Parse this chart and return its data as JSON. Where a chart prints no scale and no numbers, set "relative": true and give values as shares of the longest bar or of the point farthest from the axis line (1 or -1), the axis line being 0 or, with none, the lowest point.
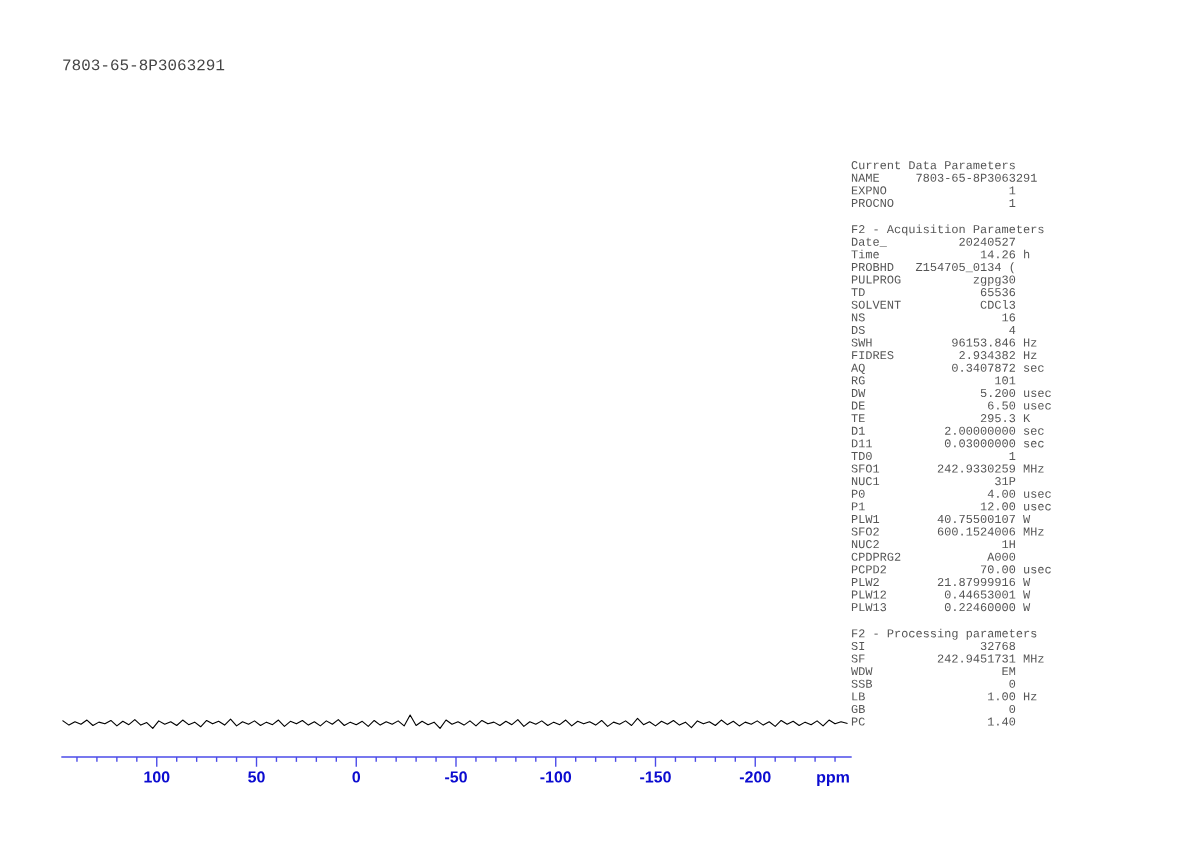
{
  "chart_data": [
    {
      "type": "line",
      "title": "7803-65-8P3063291",
      "xlabel": "ppm",
      "relative": true,
      "xlim": [
        147.5,
        -248
      ],
      "xticks": [
        {
          "value": 140,
          "label": null
        },
        {
          "value": 130,
          "label": null
        },
        {
          "value": 120,
          "label": null
        },
        {
          "value": 110,
          "label": null
        },
        100,
        {
          "value": 90,
          "label": null
        },
        {
          "value": 80,
          "label": null
        },
        {
          "value": 70,
          "label": null
        },
        {
          "value": 60,
          "label": null
        },
        50,
        {
          "value": 40,
          "label": null
        },
        {
          "value": 30,
          "label": null
        },
        {
          "value": 20,
          "label": null
        },
        {
          "value": 10,
          "label": null
        },
        0,
        {
          "value": -10,
          "label": null
        },
        {
          "value": -20,
          "label": null
        },
        {
          "value": -30,
          "label": null
        },
        {
          "value": -40,
          "label": null
        },
        -50,
        {
          "value": -60,
          "label": null
        },
        {
          "value": -70,
          "label": null
        },
        {
          "value": -80,
          "label": null
        },
        {
          "value": -90,
          "label": null
        },
        -100,
        {
          "value": -110,
          "label": null
        },
        {
          "value": -120,
          "label": null
        },
        {
          "value": -130,
          "label": null
        },
        {
          "value": -140,
          "label": null
        },
        -150,
        {
          "value": -160,
          "label": null
        },
        {
          "value": -170,
          "label": null
        },
        {
          "value": -180,
          "label": null
        },
        {
          "value": -190,
          "label": null
        },
        -200,
        {
          "value": -210,
          "label": null
        },
        {
          "value": -220,
          "label": null
        },
        {
          "value": -230,
          "label": null
        },
        {
          "value": -240,
          "label": null
        }
      ],
      "x": [
        147,
        144,
        141,
        138,
        135,
        132,
        129,
        126,
        123,
        120,
        117,
        114,
        111,
        108,
        105,
        102,
        99,
        96,
        93,
        90,
        87,
        84,
        81,
        78,
        75,
        72,
        69,
        66,
        63,
        60,
        57,
        54,
        51,
        48,
        45,
        42,
        39,
        36,
        33,
        30,
        27,
        24,
        21,
        18,
        15,
        12,
        9,
        6,
        3,
        0,
        -3,
        -6,
        -9,
        -12,
        -15,
        -18,
        -21,
        -24,
        -27,
        -30,
        -33,
        -36,
        -39,
        -42,
        -45,
        -48,
        -51,
        -54,
        -57,
        -60,
        -63,
        -66,
        -69,
        -72,
        -75,
        -78,
        -81,
        -84,
        -87,
        -90,
        -93,
        -96,
        -99,
        -102,
        -105,
        -108,
        -111,
        -114,
        -117,
        -120,
        -123,
        -126,
        -129,
        -132,
        -135,
        -138,
        -141,
        -144,
        -147,
        -150,
        -153,
        -156,
        -159,
        -162,
        -165,
        -168,
        -171,
        -174,
        -177,
        -180,
        -183,
        -186,
        -189,
        -192,
        -195,
        -198,
        -201,
        -204,
        -207,
        -210,
        -213,
        -216,
        -219,
        -222,
        -225,
        -228,
        -231,
        -234,
        -237,
        -240,
        -243,
        -246
      ],
      "series": [
        {
          "color": "#000000",
          "values": [
            0.86,
            0.76,
            0.84,
            0.78,
            0.88,
            0.75,
            0.83,
            0.79,
            0.87,
            0.74,
            0.85,
            0.77,
            0.89,
            0.76,
            0.82,
            0.68,
            0.86,
            0.78,
            0.84,
            0.75,
            0.88,
            0.77,
            0.83,
            0.72,
            0.87,
            0.79,
            0.85,
            0.76,
            0.9,
            0.74,
            0.84,
            0.78,
            0.86,
            0.75,
            0.83,
            0.77,
            0.88,
            0.73,
            0.85,
            0.79,
            0.87,
            0.76,
            0.84,
            0.74,
            0.86,
            0.78,
            0.89,
            0.75,
            0.83,
            0.77,
            0.85,
            0.73,
            0.87,
            0.76,
            0.84,
            0.78,
            0.86,
            0.74,
            1.0,
            0.75,
            0.85,
            0.77,
            0.83,
            0.68,
            0.88,
            0.78,
            0.84,
            0.76,
            0.86,
            0.74,
            0.87,
            0.79,
            0.83,
            0.75,
            0.85,
            0.77,
            0.89,
            0.73,
            0.84,
            0.78,
            0.86,
            0.75,
            0.83,
            0.77,
            0.88,
            0.74,
            0.85,
            0.79,
            0.84,
            0.76,
            0.87,
            0.73,
            0.83,
            0.78,
            0.86,
            0.75,
            0.92,
            0.77,
            0.84,
            0.74,
            0.85,
            0.78,
            0.87,
            0.76,
            0.83,
            0.7,
            0.86,
            0.79,
            0.84,
            0.75,
            0.88,
            0.77,
            0.85,
            0.74,
            0.83,
            0.78,
            0.86,
            0.76,
            0.84,
            0.73,
            0.87,
            0.78,
            0.85,
            0.75,
            0.83,
            0.77,
            0.86,
            0.74,
            0.88,
            0.79,
            0.84,
            0.8
          ]
        }
      ]
    },
    {
      "type": "other",
      "title": "Current Data Parameters",
      "annotations": [
        "NAME     7803-65-8P3063291",
        "EXPNO                 1",
        "PROCNO                1"
      ]
    },
    {
      "type": "other",
      "title": "F2 - Acquisition Parameters",
      "annotations": [
        "Date_          20240527",
        "Time              14.26 h",
        "PROBHD   Z154705_0134 (",
        "PULPROG          zgpg30",
        "TD                65536",
        "SOLVENT           CDCl3",
        "NS                   16",
        "DS                    4",
        "SWH           96153.846 Hz",
        "FIDRES         2.934382 Hz",
        "AQ            0.3407872 sec",
        "RG                  101",
        "DW                5.200 usec",
        "DE                 6.50 usec",
        "TE                295.3 K",
        "D1           2.00000000 sec",
        "D11          0.03000000 sec",
        "TD0                   1",
        "SFO1        242.9330259 MHz",
        "NUC1                31P",
        "P0                 4.00 usec",
        "P1                12.00 usec",
        "PLW1        40.75500107 W",
        "SFO2        600.1524006 MHz",
        "NUC2                 1H",
        "CPDPRG2            A000",
        "PCPD2             70.00 usec",
        "PLW2        21.87999916 W",
        "PLW12        0.44653001 W",
        "PLW13        0.22460000 W"
      ]
    },
    {
      "type": "other",
      "title": "F2 - Processing parameters",
      "annotations": [
        "SI                32768",
        "SF          242.9451731 MHz",
        "WDW                  EM",
        "SSB                   0",
        "LB                 1.00 Hz",
        "GB                    0",
        "PC                 1.40"
      ]
    }
  ]
}
